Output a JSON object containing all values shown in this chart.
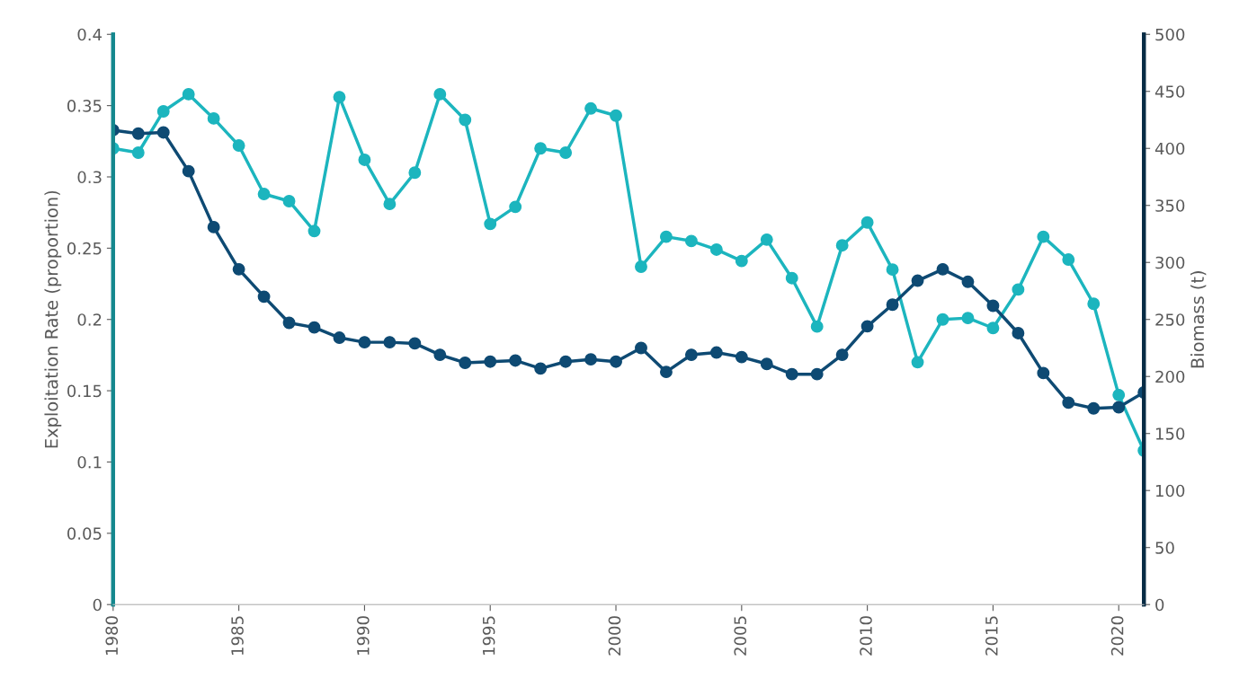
{
  "chart_data": {
    "type": "line",
    "ylabel": "Exploitation Rate (proportion)",
    "y2label": "Biomass (t)",
    "x": [
      1980,
      1981,
      1982,
      1983,
      1984,
      1985,
      1986,
      1987,
      1988,
      1989,
      1990,
      1991,
      1992,
      1993,
      1994,
      1995,
      1996,
      1997,
      1998,
      1999,
      2000,
      2001,
      2002,
      2003,
      2004,
      2005,
      2006,
      2007,
      2008,
      2009,
      2010,
      2011,
      2012,
      2013,
      2014,
      2015,
      2016,
      2017,
      2018,
      2019,
      2020,
      2021
    ],
    "series": [
      {
        "color": "#1cb5be",
        "values": [
          0.32,
          0.317,
          0.346,
          0.358,
          0.341,
          0.322,
          0.288,
          0.283,
          0.262,
          0.356,
          0.312,
          0.281,
          0.303,
          0.358,
          0.34,
          0.267,
          0.279,
          0.32,
          0.317,
          0.348,
          0.343,
          0.237,
          0.258,
          0.255,
          0.249,
          0.241,
          0.256,
          0.229,
          0.195,
          0.252,
          0.268,
          0.235,
          0.17,
          0.2,
          0.201,
          0.194,
          0.221,
          0.258,
          0.242,
          0.211,
          0.147,
          0.108
        ]
      },
      {
        "color": "#0e4a73",
        "axis": "y2",
        "values": [
          416,
          413,
          414,
          380,
          331,
          294,
          270,
          247,
          243,
          234,
          230,
          230,
          229,
          219,
          212,
          213,
          214,
          207,
          213,
          215,
          213,
          225,
          204,
          219,
          221,
          217,
          211,
          202,
          202,
          219,
          244,
          263,
          284,
          294,
          283,
          262,
          238,
          203,
          177,
          172,
          173,
          186
        ]
      }
    ],
    "xlim": [
      1980,
      2021
    ],
    "xticks": [
      1980,
      1985,
      1990,
      1995,
      2000,
      2005,
      2010,
      2015,
      2020
    ],
    "ylim": [
      0,
      0.4
    ],
    "yticks": [
      0,
      0.05,
      0.1,
      0.15,
      0.2,
      0.25,
      0.3,
      0.35,
      0.4
    ],
    "y2lim": [
      0,
      500
    ],
    "y2ticks": [
      0,
      50,
      100,
      150,
      200,
      250,
      300,
      350,
      400,
      450,
      500
    ],
    "grid": false,
    "legend": false,
    "marker": "circle",
    "line_style": "solid"
  }
}
